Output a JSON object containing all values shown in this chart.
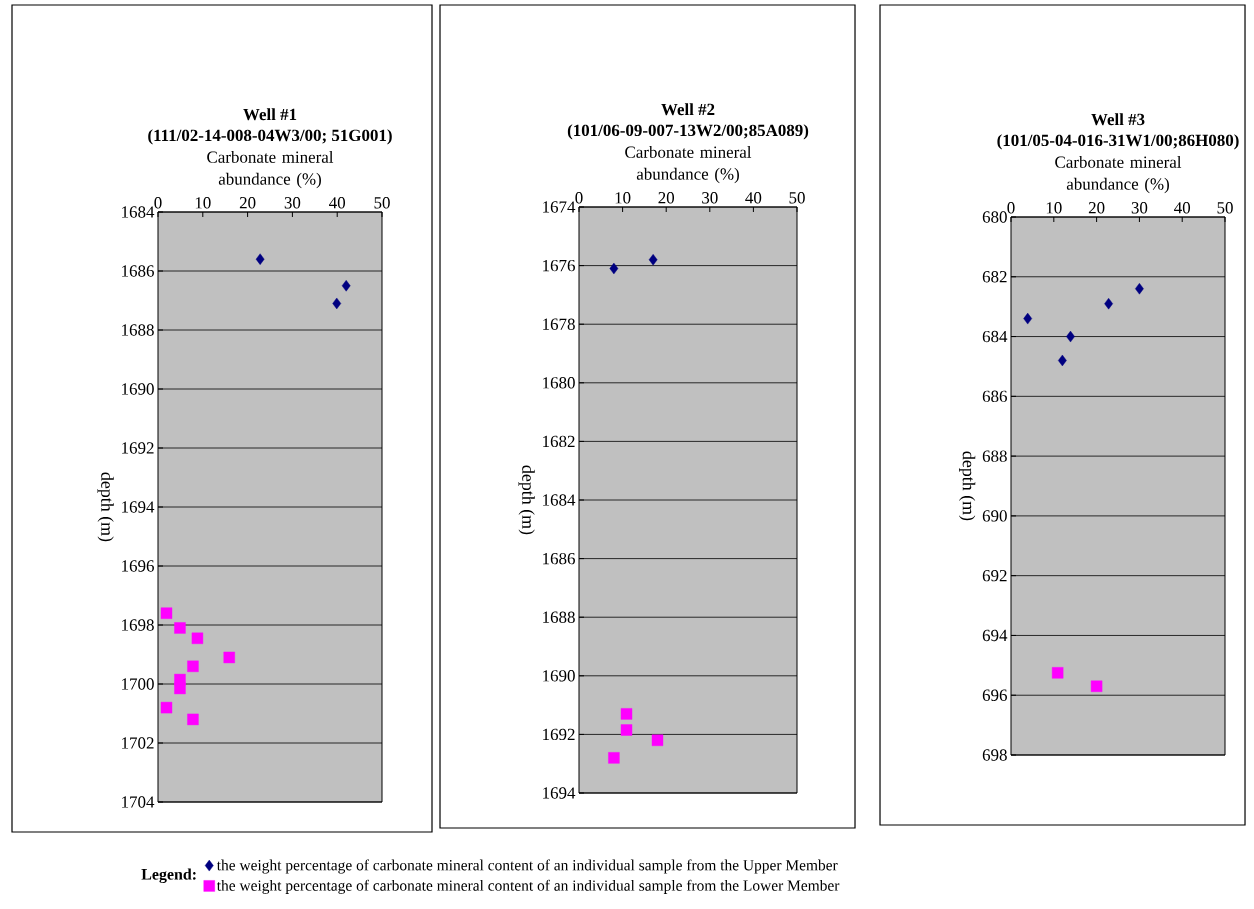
{
  "chart_data": [
    {
      "type": "scatter",
      "title": "Well #1",
      "subtitle": "(111/02-14-008-04W3/00; 51G001)",
      "xlabel": "Carbonate mineral abundance (%)",
      "ylabel": "depth (m)",
      "legend_title": "Legend:",
      "legend": "bottom",
      "grid": "y",
      "xlim": [
        0,
        50
      ],
      "xticks": [
        0,
        10,
        20,
        30,
        40,
        50
      ],
      "ylim": [
        1704,
        1684
      ],
      "yticks": [
        1684,
        1686,
        1688,
        1690,
        1692,
        1694,
        1696,
        1698,
        1700,
        1702,
        1704
      ],
      "series": [
        {
          "name": "the weight percentage of carbonate mineral content of an individual sample from the Upper Member",
          "color": "#000080",
          "marker": "diamond",
          "x": [
            22.8,
            42.0,
            39.9
          ],
          "values": [
            1685.6,
            1686.5,
            1687.1
          ]
        },
        {
          "name": "the weight percentage of carbonate mineral content of an individual sample from the Lower Member",
          "color": "#ff00ff",
          "marker": "square",
          "x": [
            1.9,
            4.9,
            8.8,
            15.9,
            7.8,
            4.9,
            4.9,
            1.9,
            7.8
          ],
          "values": [
            1697.6,
            1698.1,
            1698.45,
            1699.1,
            1699.4,
            1699.85,
            1700.15,
            1700.8,
            1701.2
          ]
        }
      ]
    },
    {
      "type": "scatter",
      "title": "Well #2",
      "subtitle": "(101/06-09-007-13W2/00;85A089)",
      "xlabel": "Carbonate mineral abundance (%)",
      "ylabel": "depth (m)",
      "grid": "y",
      "xlim": [
        0,
        50
      ],
      "xticks": [
        0,
        10,
        20,
        30,
        40,
        50
      ],
      "ylim": [
        1694,
        1674
      ],
      "yticks": [
        1674,
        1676,
        1678,
        1680,
        1682,
        1684,
        1686,
        1688,
        1690,
        1692,
        1694
      ],
      "series": [
        {
          "color": "#000080",
          "marker": "diamond",
          "x": [
            8.0,
            17.0
          ],
          "values": [
            1676.1,
            1675.8
          ]
        },
        {
          "color": "#ff00ff",
          "marker": "square",
          "x": [
            10.9,
            10.9,
            18.0,
            8.0
          ],
          "values": [
            1691.3,
            1691.85,
            1692.2,
            1692.8
          ]
        }
      ]
    },
    {
      "type": "scatter",
      "title": "Well #3",
      "subtitle": "(101/05-04-016-31W1/00;86H080)",
      "xlabel": "Carbonate mineral abundance (%)",
      "ylabel": "depth (m)",
      "grid": "y",
      "xlim": [
        0,
        50
      ],
      "xticks": [
        0,
        10,
        20,
        30,
        40,
        50
      ],
      "ylim": [
        698,
        680
      ],
      "yticks": [
        680,
        682,
        684,
        686,
        688,
        690,
        692,
        694,
        696,
        698
      ],
      "series": [
        {
          "color": "#000080",
          "marker": "diamond",
          "x": [
            3.9,
            12.0,
            13.9,
            22.8,
            30.0
          ],
          "values": [
            683.4,
            684.8,
            684.0,
            682.9,
            682.4
          ]
        },
        {
          "color": "#ff00ff",
          "marker": "square",
          "x": [
            10.9,
            20.0
          ],
          "values": [
            695.25,
            695.7
          ]
        }
      ]
    }
  ]
}
